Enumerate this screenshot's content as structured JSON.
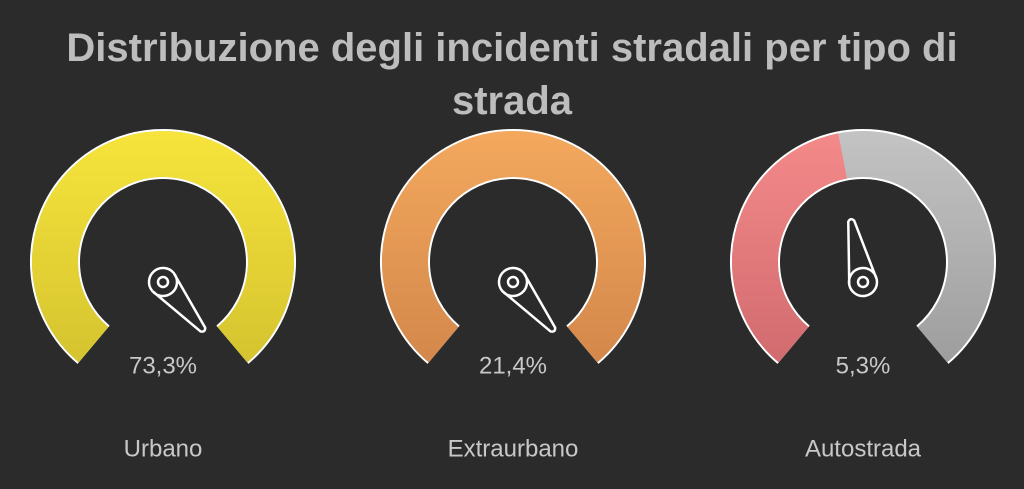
{
  "chart_data": {
    "type": "gauge",
    "title": "Distribuzione degli incidenti stradali per tipo di strada",
    "categories": [
      "Urbano",
      "Extraurbano",
      "Autostrada"
    ],
    "values": [
      73.3,
      21.4,
      5.3
    ],
    "value_labels": [
      "73,3%",
      "21,4%",
      "5,3%"
    ],
    "colors": [
      [
        "#f7e53c",
        "#d4c22f"
      ],
      [
        "#f4a95e",
        "#d2864a"
      ],
      [
        "#f58a8a",
        "#d06a6e"
      ]
    ],
    "track_color": [
      "#c4c4c4",
      "#9c9c9c"
    ],
    "ylim": [
      0,
      11.5
    ]
  }
}
